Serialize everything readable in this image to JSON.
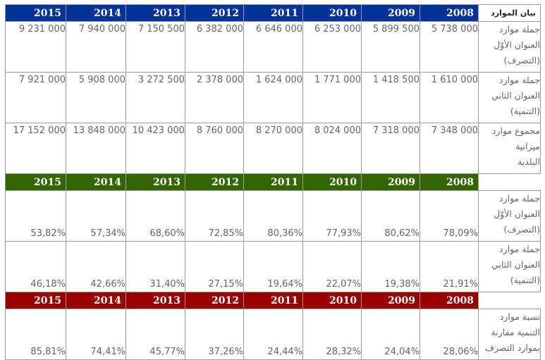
{
  "header_label": "بيان الموارد",
  "years": [
    "2015",
    "2014",
    "2013",
    "2012",
    "2011",
    "2010",
    "2009",
    "2008"
  ],
  "section1": {
    "rows": [
      {
        "label": [
          "جملة موارد",
          "العنوان الأوّل",
          "(التصرف)"
        ],
        "values": [
          "9 231 000",
          "7 940 000",
          "7 150 500",
          "6 382 000",
          "6 646 000",
          "6 253 000",
          "5 899 500",
          "5 738 000"
        ]
      },
      {
        "label": [
          "جملة موارد",
          "العنوان الثاني",
          "(التنمية)"
        ],
        "values": [
          "7 921 000",
          "5 908 000",
          "3 272 500",
          "2 378 000",
          "1 624 000",
          "1 771 000",
          "1 418 500",
          "1 610 000"
        ]
      },
      {
        "label": [
          "مجموع موارد",
          "ميزانية",
          "البلدية"
        ],
        "values": [
          "17 152 000",
          "13 848 000",
          "10 423 000",
          "8 760 000",
          "8 270 000",
          "8 024 000",
          "7 318 000",
          "7 348 000"
        ]
      }
    ]
  },
  "section2": {
    "rows": [
      {
        "label": [
          "جملة موارد",
          "العنوان الأوّل",
          "(التصرف)"
        ],
        "values": [
          "53,82%",
          "57,34%",
          "68,60%",
          "72,85%",
          "80,36%",
          "77,93%",
          "80,62%",
          "78,09%"
        ]
      },
      {
        "label": [
          "جملة موارد",
          "العنوان الثاني",
          "(التنمية)"
        ],
        "values": [
          "46,18%",
          "42,66%",
          "31,40%",
          "27,15%",
          "19,64%",
          "22,07%",
          "19,38%",
          "21,91%"
        ]
      }
    ]
  },
  "section3": {
    "rows": [
      {
        "label": [
          "نسبة موارد",
          "التنمية مقارنة",
          "بموارد التصرف"
        ],
        "values": [
          "85,81%",
          "74,41%",
          "45,77%",
          "37,26%",
          "24,44%",
          "28,32%",
          "24,04%",
          "28,06%"
        ]
      }
    ]
  },
  "colors": {
    "header_blue": "#003399",
    "header_green": "#336600",
    "header_red": "#990000",
    "value_text": "#666666"
  }
}
